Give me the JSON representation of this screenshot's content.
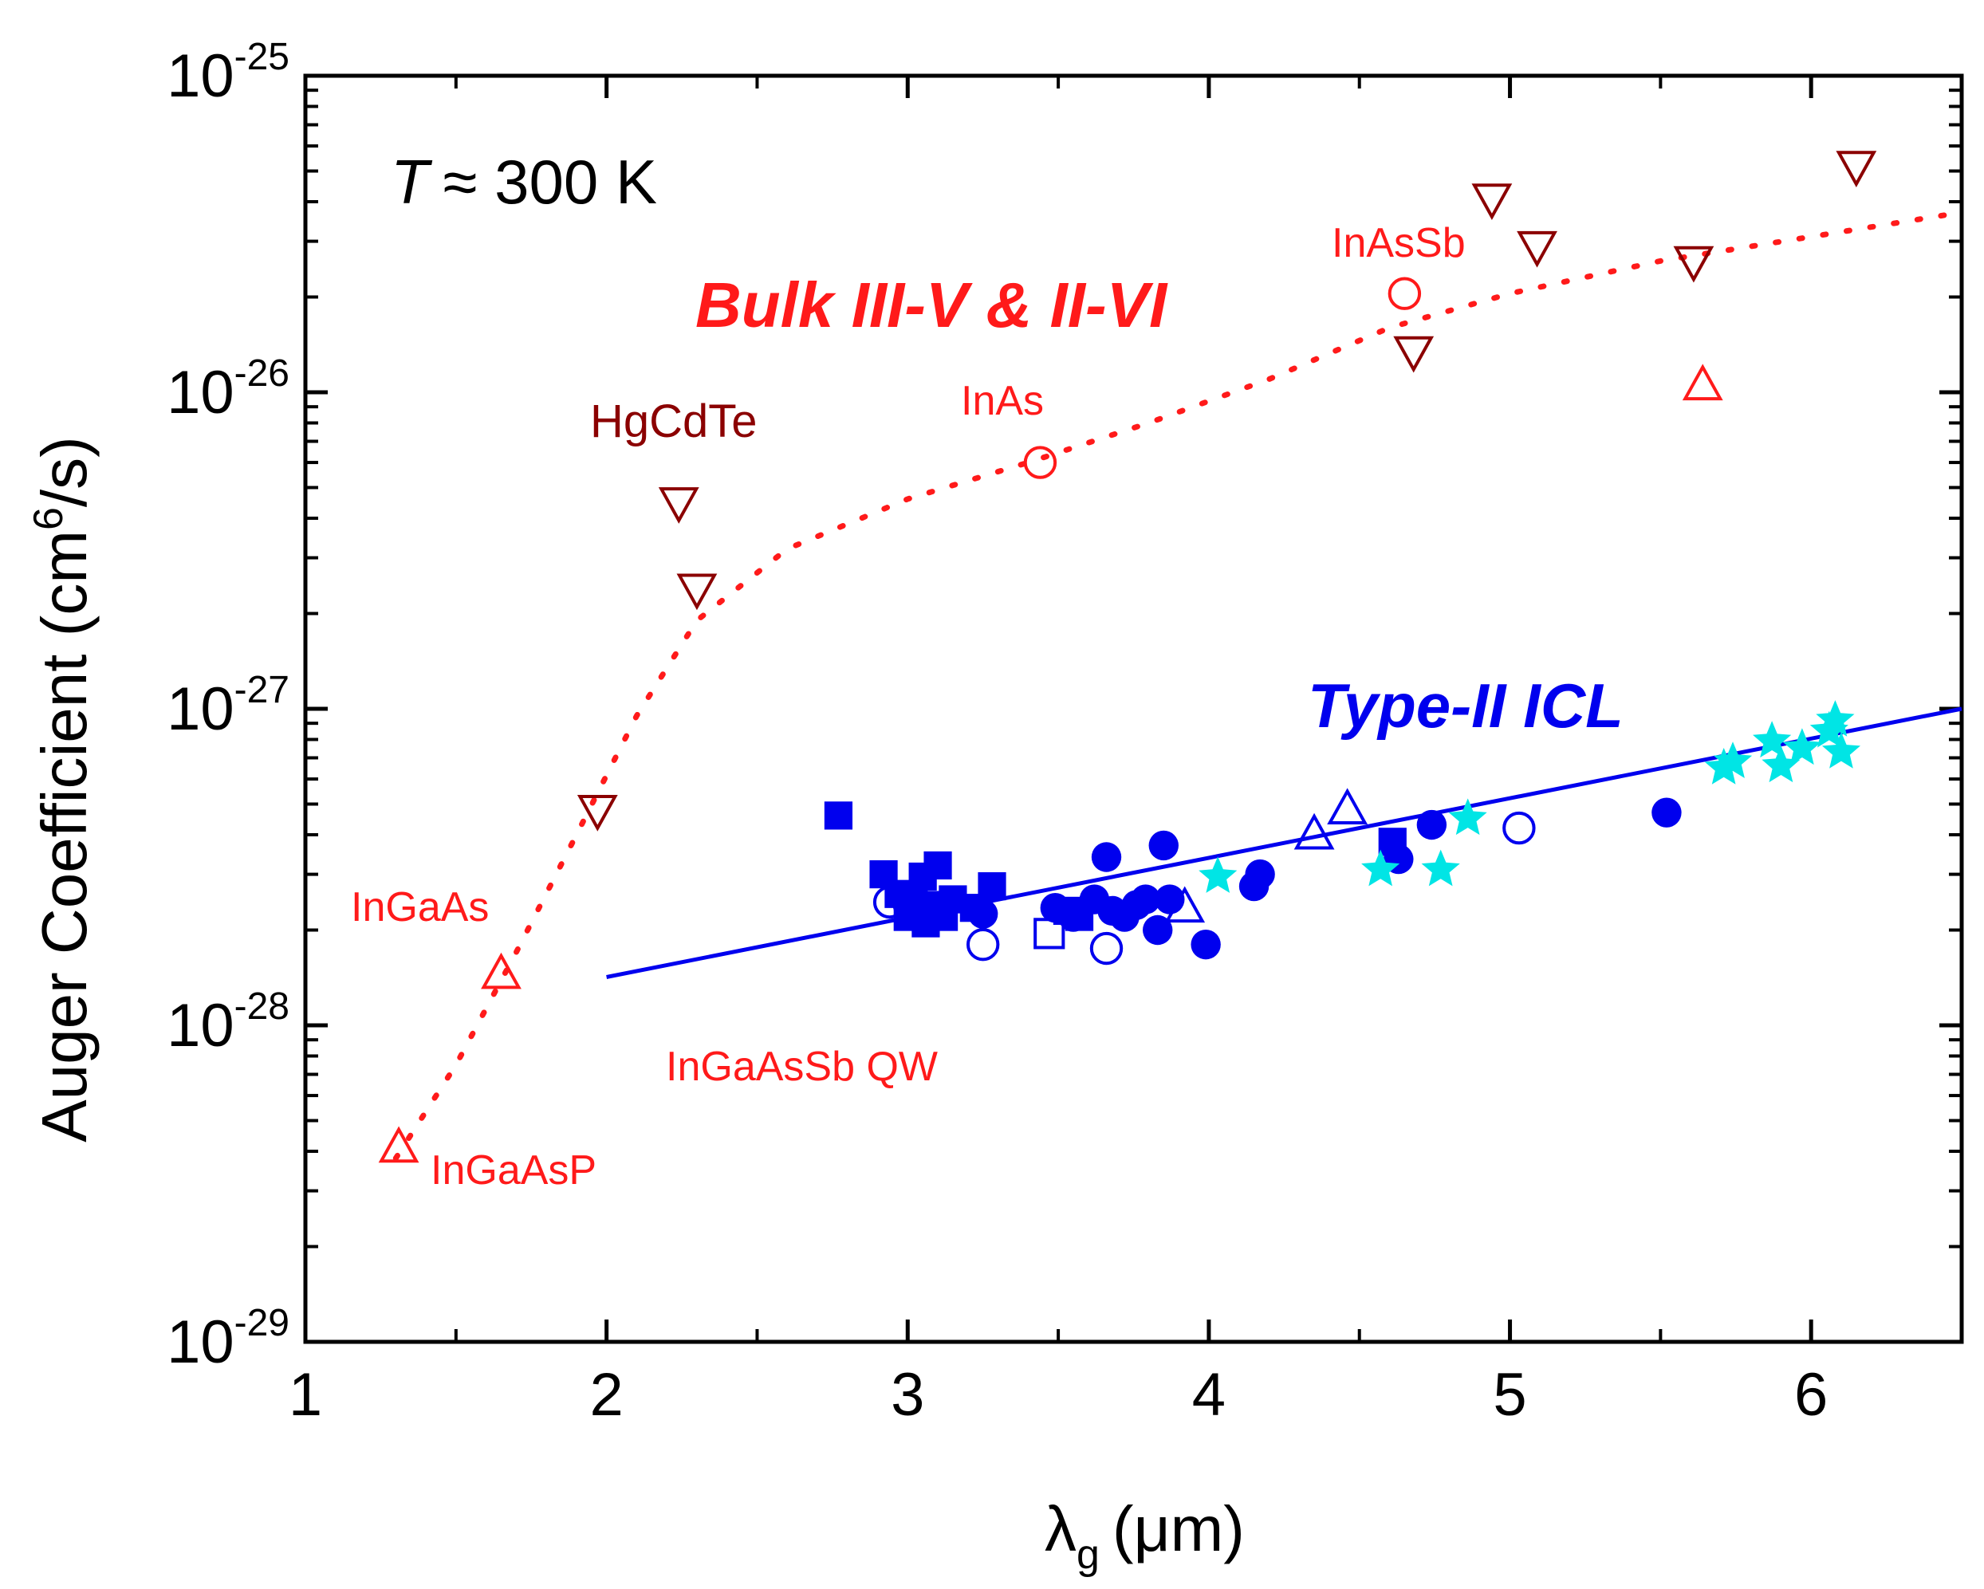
{
  "chart_data": {
    "type": "scatter",
    "xlabel": {
      "main": "λ",
      "sub": "g",
      "unit": "(μm)"
    },
    "ylabel": {
      "main": "Auger Coefficient (cm",
      "sup": "6",
      "tail": "/s)"
    },
    "xlim": [
      1,
      6.5
    ],
    "ylim_log10": [
      -29,
      -25
    ],
    "x_ticks": [
      1,
      2,
      3,
      4,
      5,
      6
    ],
    "x_tick_labels": [
      "1",
      "2",
      "3",
      "4",
      "5",
      "6"
    ],
    "y_ticks": [
      {
        "base": "10",
        "exp": "-29",
        "value": -29
      },
      {
        "base": "10",
        "exp": "-28",
        "value": -28
      },
      {
        "base": "10",
        "exp": "-27",
        "value": -27
      },
      {
        "base": "10",
        "exp": "-26",
        "value": -26
      },
      {
        "base": "10",
        "exp": "-25",
        "value": -25
      }
    ],
    "temperature": {
      "symbol": "T",
      "text": "≈ 300 K"
    },
    "annotations": {
      "bulk_title": "Bulk III-V & II-VI",
      "icl_title": "Type-II ICL",
      "hgcdte": "HgCdTe",
      "inas": "InAs",
      "inassb": "InAsSb",
      "ingaas": "InGaAs",
      "ingaasp": "InGaAsP",
      "ingaassb_qw": "InGaAsSb QW"
    },
    "colors": {
      "red": "#ff1a1a",
      "dark_red": "#8b0000",
      "blue": "#0000ee",
      "cyan": "#00e5e5"
    },
    "series": [
      {
        "name": "HgCdTe",
        "marker": "triangle-down-open",
        "color": "#8b0000",
        "points": [
          [
            1.97,
            4.8e-28
          ],
          [
            2.24,
            4.5e-27
          ],
          [
            2.3,
            2.4e-27
          ],
          [
            4.68,
            1.35e-26
          ],
          [
            4.94,
            4.1e-26
          ],
          [
            5.09,
            2.9e-26
          ],
          [
            5.61,
            2.6e-26
          ],
          [
            6.15,
            5.2e-26
          ]
        ]
      },
      {
        "name": "InGaAs / InGaAsP",
        "marker": "triangle-up-open",
        "color": "#ff1a1a",
        "points": [
          [
            1.31,
            4.1e-29
          ],
          [
            1.65,
            1.45e-28
          ],
          [
            5.64,
            1.05e-26
          ]
        ]
      },
      {
        "name": "InAs / InAsSb",
        "marker": "circle-open",
        "color": "#ff1a1a",
        "points": [
          [
            3.44,
            6e-27
          ],
          [
            4.65,
            2.05e-26
          ]
        ]
      },
      {
        "name": "Bulk trend",
        "marker": "dotted-line",
        "color": "#ff1a1a",
        "points": [
          [
            1.3,
            3.8e-29
          ],
          [
            1.5,
            7.5e-29
          ],
          [
            1.7,
            1.7e-28
          ],
          [
            1.9,
            4e-28
          ],
          [
            2.1,
            9.5e-28
          ],
          [
            2.3,
            1.9e-27
          ],
          [
            2.6,
            3.2e-27
          ],
          [
            3.0,
            4.6e-27
          ],
          [
            3.4,
            6e-27
          ],
          [
            3.8,
            8e-27
          ],
          [
            4.2,
            1.1e-26
          ],
          [
            4.6,
            1.6e-26
          ],
          [
            5.0,
            2.05e-26
          ],
          [
            5.5,
            2.6e-26
          ],
          [
            6.0,
            3.1e-26
          ],
          [
            6.5,
            3.7e-26
          ]
        ]
      },
      {
        "name": "ICL square filled",
        "marker": "square-filled",
        "color": "#0000ee",
        "points": [
          [
            2.77,
            4.6e-28
          ],
          [
            2.92,
            3e-28
          ],
          [
            2.97,
            2.6e-28
          ],
          [
            3.0,
            2.2e-28
          ],
          [
            3.02,
            2.5e-28
          ],
          [
            3.05,
            2.95e-28
          ],
          [
            3.06,
            2.1e-28
          ],
          [
            3.08,
            2.4e-28
          ],
          [
            3.1,
            3.2e-28
          ],
          [
            3.12,
            2.2e-28
          ],
          [
            3.15,
            2.5e-28
          ],
          [
            3.22,
            2.35e-28
          ],
          [
            3.28,
            2.75e-28
          ],
          [
            3.53,
            2.3e-28
          ],
          [
            3.57,
            2.2e-28
          ],
          [
            4.61,
            3.8e-28
          ]
        ]
      },
      {
        "name": "ICL circle filled",
        "marker": "circle-filled",
        "color": "#0000ee",
        "points": [
          [
            3.0,
            2.4e-28
          ],
          [
            3.25,
            2.25e-28
          ],
          [
            3.49,
            2.35e-28
          ],
          [
            3.55,
            2.2e-28
          ],
          [
            3.62,
            2.5e-28
          ],
          [
            3.66,
            3.4e-28
          ],
          [
            3.68,
            2.3e-28
          ],
          [
            3.72,
            2.2e-28
          ],
          [
            3.76,
            2.4e-28
          ],
          [
            3.79,
            2.5e-28
          ],
          [
            3.83,
            2e-28
          ],
          [
            3.85,
            3.7e-28
          ],
          [
            3.87,
            2.5e-28
          ],
          [
            3.99,
            1.8e-28
          ],
          [
            4.15,
            2.75e-28
          ],
          [
            4.17,
            3e-28
          ],
          [
            4.63,
            3.35e-28
          ],
          [
            4.74,
            4.3e-28
          ],
          [
            5.52,
            4.7e-28
          ]
        ]
      },
      {
        "name": "ICL circle open",
        "marker": "circle-open",
        "color": "#0000ee",
        "points": [
          [
            2.94,
            2.45e-28
          ],
          [
            3.25,
            1.8e-28
          ],
          [
            3.66,
            1.75e-28
          ],
          [
            5.03,
            4.2e-28
          ]
        ]
      },
      {
        "name": "ICL square open",
        "marker": "square-open",
        "color": "#0000ee",
        "points": [
          [
            3.47,
            1.95e-28
          ]
        ]
      },
      {
        "name": "ICL triangle open",
        "marker": "triangle-up-open",
        "color": "#0000ee",
        "points": [
          [
            3.92,
            2.35e-28
          ],
          [
            4.35,
            4e-28
          ],
          [
            4.46,
            4.8e-28
          ]
        ]
      },
      {
        "name": "ICL stars",
        "marker": "star-filled",
        "color": "#00e5e5",
        "points": [
          [
            4.03,
            2.95e-28
          ],
          [
            4.57,
            3.1e-28
          ],
          [
            4.77,
            3.1e-28
          ],
          [
            4.86,
            4.5e-28
          ],
          [
            5.71,
            6.5e-28
          ],
          [
            5.74,
            6.8e-28
          ],
          [
            5.87,
            7.9e-28
          ],
          [
            5.9,
            6.6e-28
          ],
          [
            5.97,
            7.5e-28
          ],
          [
            6.06,
            8.5e-28
          ],
          [
            6.08,
            9.2e-28
          ],
          [
            6.1,
            7.3e-28
          ]
        ]
      },
      {
        "name": "ICL fit",
        "marker": "solid-line",
        "color": "#0000ee",
        "points": [
          [
            2.0,
            1.42e-28
          ],
          [
            6.5,
            1e-27
          ]
        ]
      }
    ]
  }
}
